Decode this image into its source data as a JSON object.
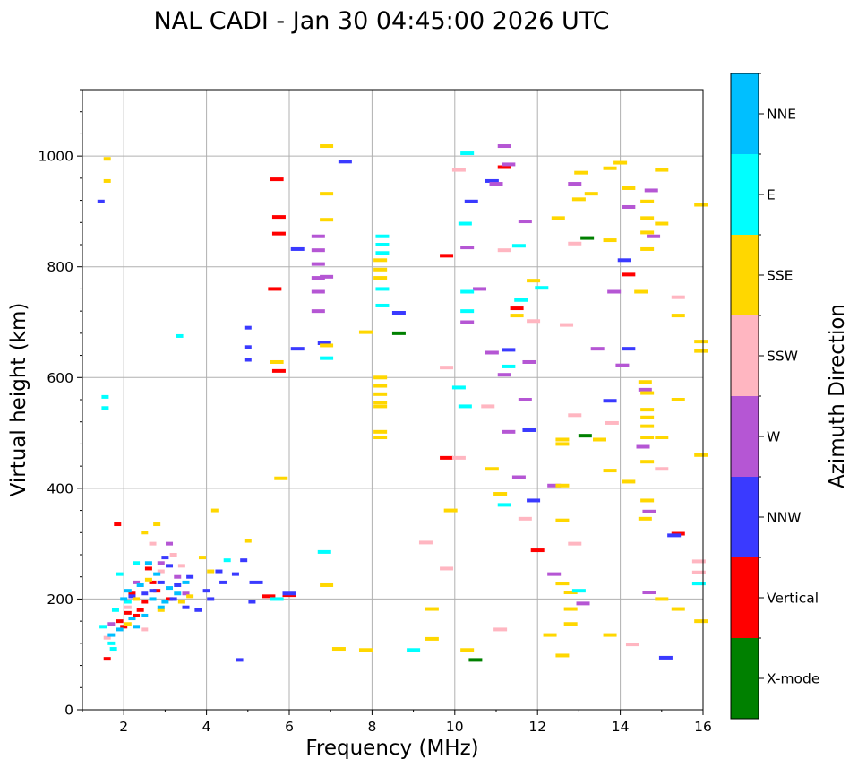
{
  "chart_data": {
    "type": "scatter",
    "title": "NAL CADI - Jan 30 04:45:00 2026 UTC",
    "xlabel": "Frequency (MHz)",
    "ylabel": "Virtual height (km)",
    "xlim": [
      1,
      16
    ],
    "ylim": [
      0,
      1120
    ],
    "xticks": [
      2,
      4,
      6,
      8,
      10,
      12,
      14,
      16
    ],
    "yticks": [
      0,
      200,
      400,
      600,
      800,
      1000
    ],
    "grid": true,
    "colorbar": {
      "label": "Azimuth Direction",
      "categories": [
        {
          "name": "X-mode",
          "color": "#008000"
        },
        {
          "name": "Vertical",
          "color": "#ff0000"
        },
        {
          "name": "NNW",
          "color": "#3a3aff"
        },
        {
          "name": "W",
          "color": "#b556d4"
        },
        {
          "name": "SSW",
          "color": "#ffb6c1"
        },
        {
          "name": "SSE",
          "color": "#ffd700"
        },
        {
          "name": "E",
          "color": "#00ffff"
        },
        {
          "name": "NNE",
          "color": "#00bfff"
        }
      ]
    },
    "series": [
      {
        "name": "X-mode",
        "points": [
          [
            8.65,
            680
          ],
          [
            10.5,
            90
          ],
          [
            13.15,
            495
          ],
          [
            13.2,
            852
          ]
        ]
      },
      {
        "name": "Vertical",
        "points": [
          [
            1.85,
            335
          ],
          [
            5.7,
            958
          ],
          [
            5.75,
            890
          ],
          [
            5.75,
            860
          ],
          [
            5.65,
            760
          ],
          [
            5.75,
            612
          ],
          [
            9.8,
            820
          ],
          [
            11.2,
            980
          ],
          [
            11.5,
            725
          ],
          [
            14.2,
            786
          ],
          [
            15.4,
            318
          ],
          [
            2.3,
            170
          ],
          [
            2.5,
            195
          ],
          [
            2.7,
            230
          ],
          [
            2.2,
            210
          ],
          [
            2.6,
            255
          ],
          [
            3.1,
            200
          ],
          [
            2.4,
            180
          ],
          [
            2.0,
            150
          ],
          [
            1.6,
            92
          ],
          [
            1.9,
            160
          ],
          [
            2.8,
            215
          ],
          [
            2.1,
            175
          ],
          [
            5.5,
            205
          ],
          [
            6.0,
            207
          ],
          [
            9.8,
            455
          ],
          [
            12.0,
            288
          ]
        ]
      },
      {
        "name": "NNW",
        "points": [
          [
            1.45,
            918
          ],
          [
            5.0,
            690
          ],
          [
            5.0,
            655
          ],
          [
            5.0,
            632
          ],
          [
            6.2,
            832
          ],
          [
            6.2,
            652
          ],
          [
            6.85,
            662
          ],
          [
            7.35,
            990
          ],
          [
            8.65,
            717
          ],
          [
            10.4,
            918
          ],
          [
            10.9,
            955
          ],
          [
            11.3,
            650
          ],
          [
            11.8,
            505
          ],
          [
            11.9,
            378
          ],
          [
            13.75,
            558
          ],
          [
            14.2,
            652
          ],
          [
            14.1,
            812
          ],
          [
            15.1,
            94
          ],
          [
            15.3,
            315
          ],
          [
            3.1,
            260
          ],
          [
            2.9,
            230
          ],
          [
            3.2,
            200
          ],
          [
            3.5,
            185
          ],
          [
            4.1,
            200
          ],
          [
            4.4,
            230
          ],
          [
            4.7,
            245
          ],
          [
            3.6,
            240
          ],
          [
            4.0,
            215
          ],
          [
            2.7,
            215
          ],
          [
            3.0,
            275
          ],
          [
            4.3,
            250
          ],
          [
            4.9,
            270
          ],
          [
            5.2,
            230
          ],
          [
            2.5,
            210
          ],
          [
            3.3,
            225
          ],
          [
            5.1,
            195
          ],
          [
            4.8,
            90
          ],
          [
            6.0,
            210
          ],
          [
            2.2,
            205
          ],
          [
            3.8,
            180
          ]
        ]
      },
      {
        "name": "W",
        "points": [
          [
            6.7,
            855
          ],
          [
            6.7,
            830
          ],
          [
            6.7,
            805
          ],
          [
            6.7,
            780
          ],
          [
            6.7,
            755
          ],
          [
            6.7,
            720
          ],
          [
            6.9,
            782
          ],
          [
            10.3,
            835
          ],
          [
            10.3,
            700
          ],
          [
            10.6,
            760
          ],
          [
            10.9,
            645
          ],
          [
            11.0,
            950
          ],
          [
            11.2,
            605
          ],
          [
            11.3,
            502
          ],
          [
            11.55,
            420
          ],
          [
            11.7,
            882
          ],
          [
            11.7,
            560
          ],
          [
            11.8,
            628
          ],
          [
            12.4,
            405
          ],
          [
            12.4,
            245
          ],
          [
            12.9,
            950
          ],
          [
            13.1,
            192
          ],
          [
            13.45,
            652
          ],
          [
            13.85,
            755
          ],
          [
            14.05,
            622
          ],
          [
            14.2,
            908
          ],
          [
            14.55,
            475
          ],
          [
            14.6,
            578
          ],
          [
            14.7,
            358
          ],
          [
            14.7,
            212
          ],
          [
            14.75,
            938
          ],
          [
            14.8,
            855
          ],
          [
            11.2,
            1018
          ],
          [
            11.3,
            985
          ],
          [
            3.1,
            300
          ],
          [
            3.3,
            240
          ],
          [
            2.9,
            265
          ],
          [
            3.5,
            210
          ],
          [
            1.7,
            155
          ],
          [
            2.3,
            230
          ]
        ]
      },
      {
        "name": "SSW",
        "points": [
          [
            9.3,
            302
          ],
          [
            9.8,
            618
          ],
          [
            9.8,
            255
          ],
          [
            10.1,
            455
          ],
          [
            10.1,
            975
          ],
          [
            10.8,
            548
          ],
          [
            11.1,
            145
          ],
          [
            11.2,
            830
          ],
          [
            11.7,
            345
          ],
          [
            11.9,
            702
          ],
          [
            12.7,
            695
          ],
          [
            12.9,
            842
          ],
          [
            12.9,
            532
          ],
          [
            12.9,
            300
          ],
          [
            13.8,
            518
          ],
          [
            14.3,
            118
          ],
          [
            15.0,
            435
          ],
          [
            15.4,
            745
          ],
          [
            15.9,
            248
          ],
          [
            15.9,
            268
          ],
          [
            2.7,
            300
          ],
          [
            3.2,
            280
          ],
          [
            2.5,
            145
          ],
          [
            2.1,
            185
          ],
          [
            1.6,
            130
          ],
          [
            2.9,
            250
          ],
          [
            3.4,
            260
          ]
        ]
      },
      {
        "name": "SSE",
        "points": [
          [
            1.6,
            995
          ],
          [
            1.6,
            955
          ],
          [
            5.7,
            628
          ],
          [
            5.8,
            418
          ],
          [
            6.9,
            1018
          ],
          [
            6.9,
            932
          ],
          [
            6.9,
            885
          ],
          [
            6.9,
            658
          ],
          [
            6.9,
            225
          ],
          [
            7.2,
            110
          ],
          [
            7.85,
            108
          ],
          [
            7.85,
            682
          ],
          [
            8.2,
            502
          ],
          [
            8.2,
            492
          ],
          [
            8.2,
            600
          ],
          [
            8.2,
            585
          ],
          [
            8.2,
            570
          ],
          [
            8.2,
            555
          ],
          [
            8.2,
            548
          ],
          [
            8.2,
            812
          ],
          [
            8.2,
            795
          ],
          [
            8.2,
            780
          ],
          [
            9.45,
            182
          ],
          [
            9.45,
            128
          ],
          [
            9.9,
            360
          ],
          [
            10.3,
            108
          ],
          [
            10.9,
            435
          ],
          [
            11.1,
            390
          ],
          [
            11.5,
            712
          ],
          [
            11.9,
            775
          ],
          [
            12.3,
            135
          ],
          [
            12.5,
            888
          ],
          [
            12.6,
            488
          ],
          [
            12.6,
            480
          ],
          [
            12.6,
            405
          ],
          [
            12.6,
            342
          ],
          [
            12.6,
            228
          ],
          [
            12.6,
            98
          ],
          [
            12.8,
            212
          ],
          [
            12.8,
            182
          ],
          [
            12.8,
            155
          ],
          [
            13.05,
            970
          ],
          [
            13.0,
            922
          ],
          [
            13.3,
            932
          ],
          [
            13.5,
            488
          ],
          [
            13.75,
            978
          ],
          [
            13.75,
            848
          ],
          [
            13.75,
            432
          ],
          [
            13.75,
            135
          ],
          [
            14.0,
            988
          ],
          [
            14.2,
            942
          ],
          [
            14.2,
            412
          ],
          [
            14.5,
            755
          ],
          [
            14.6,
            345
          ],
          [
            14.6,
            592
          ],
          [
            14.65,
            572
          ],
          [
            14.65,
            542
          ],
          [
            14.65,
            528
          ],
          [
            14.65,
            512
          ],
          [
            14.65,
            492
          ],
          [
            14.65,
            448
          ],
          [
            14.65,
            378
          ],
          [
            14.65,
            832
          ],
          [
            14.65,
            862
          ],
          [
            14.65,
            888
          ],
          [
            14.65,
            918
          ],
          [
            15.0,
            975
          ],
          [
            15.0,
            878
          ],
          [
            15.0,
            492
          ],
          [
            15.0,
            200
          ],
          [
            15.4,
            712
          ],
          [
            15.4,
            560
          ],
          [
            15.4,
            182
          ],
          [
            15.95,
            912
          ],
          [
            15.95,
            665
          ],
          [
            15.95,
            648
          ],
          [
            15.95,
            460
          ],
          [
            15.95,
            160
          ],
          [
            4.2,
            360
          ],
          [
            5.0,
            305
          ],
          [
            2.5,
            320
          ],
          [
            2.8,
            335
          ],
          [
            2.3,
            200
          ],
          [
            2.1,
            155
          ],
          [
            2.6,
            235
          ],
          [
            2.9,
            180
          ],
          [
            3.4,
            195
          ],
          [
            3.9,
            275
          ],
          [
            4.1,
            250
          ],
          [
            3.6,
            205
          ]
        ]
      },
      {
        "name": "E",
        "points": [
          [
            1.55,
            565
          ],
          [
            1.55,
            545
          ],
          [
            3.35,
            675
          ],
          [
            6.9,
            635
          ],
          [
            6.85,
            285
          ],
          [
            8.25,
            855
          ],
          [
            8.25,
            840
          ],
          [
            8.25,
            825
          ],
          [
            8.25,
            730
          ],
          [
            8.25,
            760
          ],
          [
            9.0,
            108
          ],
          [
            10.1,
            582
          ],
          [
            10.25,
            548
          ],
          [
            10.25,
            878
          ],
          [
            10.3,
            1005
          ],
          [
            10.3,
            755
          ],
          [
            10.3,
            720
          ],
          [
            11.2,
            370
          ],
          [
            11.3,
            620
          ],
          [
            11.55,
            838
          ],
          [
            11.6,
            740
          ],
          [
            12.1,
            762
          ],
          [
            13.0,
            215
          ],
          [
            15.9,
            228
          ],
          [
            1.7,
            120
          ],
          [
            1.8,
            180
          ],
          [
            2.1,
            195
          ],
          [
            2.3,
            265
          ],
          [
            1.5,
            150
          ],
          [
            1.9,
            245
          ],
          [
            4.5,
            270
          ],
          [
            5.7,
            200
          ],
          [
            1.75,
            110
          ]
        ]
      },
      {
        "name": "NNE",
        "points": [
          [
            2.5,
            170
          ],
          [
            2.7,
            200
          ],
          [
            2.9,
            185
          ],
          [
            3.1,
            220
          ],
          [
            2.2,
            165
          ],
          [
            2.4,
            225
          ],
          [
            2.6,
            265
          ],
          [
            2.8,
            245
          ],
          [
            3.3,
            210
          ],
          [
            1.9,
            145
          ],
          [
            2.1,
            215
          ],
          [
            3.0,
            195
          ],
          [
            2.3,
            150
          ],
          [
            3.5,
            230
          ],
          [
            1.7,
            135
          ],
          [
            2.0,
            200
          ]
        ]
      }
    ]
  }
}
